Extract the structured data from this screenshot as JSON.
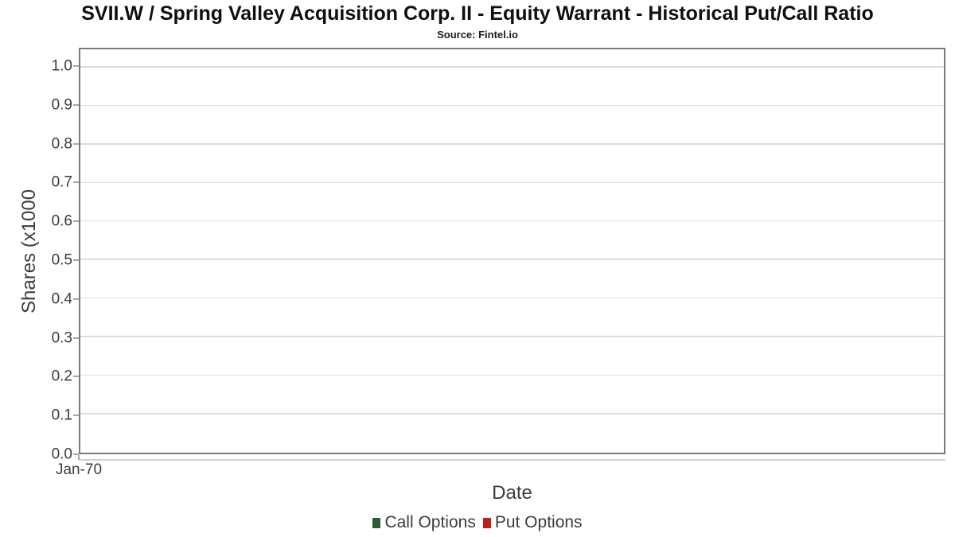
{
  "chart_data": {
    "type": "line",
    "title": "SVII.W / Spring Valley Acquisition Corp. II - Equity Warrant - Historical Put/Call Ratio",
    "subtitle": "Source: Fintel.io",
    "xlabel": "Date",
    "ylabel": "Shares (x1000",
    "x_tick_labels": [
      "Jan-70"
    ],
    "y_tick_labels": [
      "0.0",
      "0.1",
      "0.2",
      "0.3",
      "0.4",
      "0.5",
      "0.6",
      "0.7",
      "0.8",
      "0.9",
      "1.0"
    ],
    "ylim": [
      0,
      1.047
    ],
    "grid": "horizontal",
    "legend_position": "bottom",
    "plot_background": "#ffffff",
    "series": [
      {
        "name": "Call Options",
        "color": "#2a5c38",
        "x": [],
        "values": []
      },
      {
        "name": "Put Options",
        "color": "#c01c1c",
        "x": [],
        "values": []
      }
    ]
  },
  "colors": {
    "plot_border": "#7a7a7a",
    "gridline": "#dcdcdc",
    "axis_line": "#cfcfcf",
    "tick_mark": "#a8a8a8",
    "text": "#3c3c3c",
    "title_text": "#0f0f0f"
  }
}
